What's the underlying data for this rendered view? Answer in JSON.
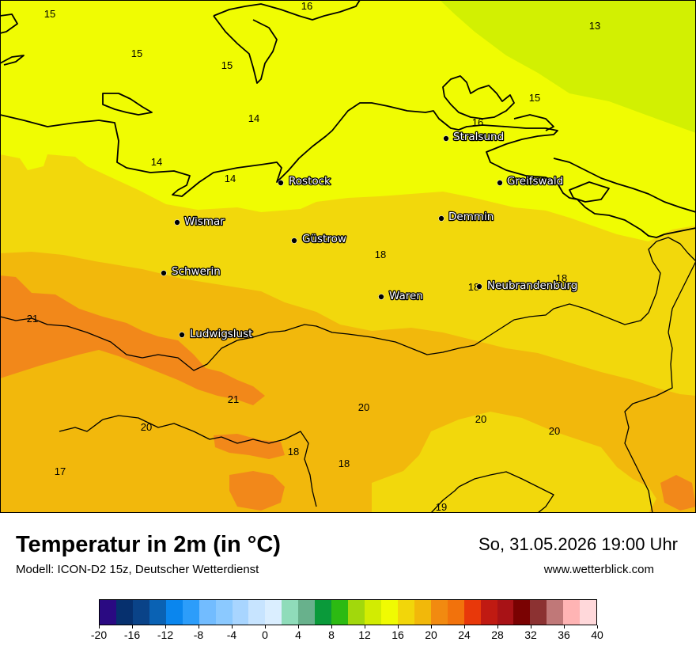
{
  "header": {
    "title": "Temperatur in 2m (in °C)",
    "model": "Modell: ICON-D2 15z, Deutscher Wetterdienst",
    "datetime": "So, 31.05.2026 19:00 Uhr",
    "website": "www.wetterblick.com"
  },
  "cities": [
    {
      "name": "Stralsund"
    },
    {
      "name": "Greifswald"
    },
    {
      "name": "Rostock"
    },
    {
      "name": "Demmin"
    },
    {
      "name": "Wismar"
    },
    {
      "name": "Güstrow"
    },
    {
      "name": "Schwerin"
    },
    {
      "name": "Neubrandenburg"
    },
    {
      "name": "Waren"
    },
    {
      "name": "Ludwigslust"
    }
  ],
  "value_labels": [
    "15",
    "16",
    "13",
    "15",
    "15",
    "15",
    "16",
    "14",
    "14",
    "14",
    "18",
    "18",
    "18",
    "21",
    "21",
    "20",
    "20",
    "20",
    "20",
    "18",
    "18",
    "17",
    "19"
  ],
  "colorbar": {
    "ticks": [
      "-20",
      "-16",
      "-12",
      "-8",
      "-4",
      "0",
      "4",
      "8",
      "12",
      "16",
      "20",
      "24",
      "28",
      "32",
      "36",
      "40"
    ],
    "colors": [
      "#2a0a82",
      "#06306e",
      "#0a4388",
      "#0a62b4",
      "#0a86ee",
      "#2c9dfa",
      "#72bcff",
      "#8bc9ff",
      "#a8d5ff",
      "#c7e4ff",
      "#daeeff",
      "#8fdcba",
      "#68b18c",
      "#0a9a3a",
      "#2cba12",
      "#a2d80c",
      "#d2ec02",
      "#f0fb02",
      "#f2d60a",
      "#f2b80a",
      "#f28a10",
      "#f2720c",
      "#e8380a",
      "#c01a12",
      "#a81216",
      "#7a0202",
      "#8c3232",
      "#c07878",
      "#ffb4b4",
      "#ffd8da"
    ]
  },
  "legend": {
    "colors": {
      "t13": "#d2f002",
      "t14": "#f0fc02",
      "t18": "#f2d80c",
      "t20": "#f2b80c",
      "t22": "#f2881a",
      "border": "#000000",
      "city_label": "#ffffff"
    }
  }
}
